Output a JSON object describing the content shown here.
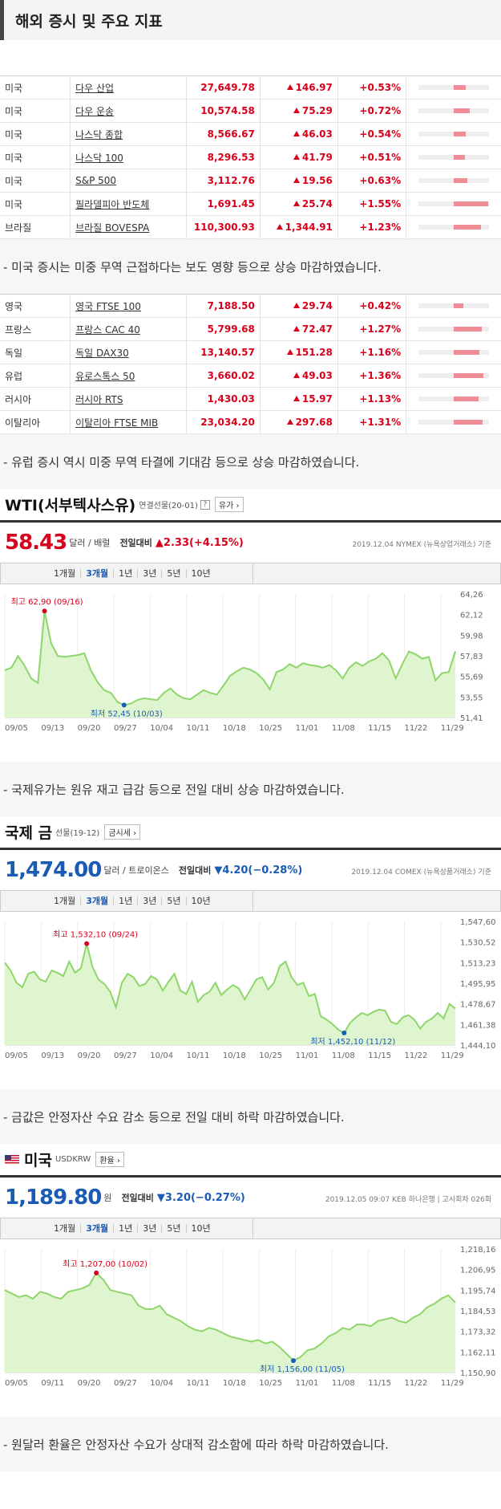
{
  "page_title": "해외 증시 및 주요 지표",
  "table1": [
    {
      "country": "미국",
      "name": "다우 산업",
      "value": "27,649.78",
      "change": "146.97",
      "pct": "+0.53%",
      "bar": 0.53
    },
    {
      "country": "미국",
      "name": "다우 운송",
      "value": "10,574.58",
      "change": "75.29",
      "pct": "+0.72%",
      "bar": 0.72
    },
    {
      "country": "미국",
      "name": "나스닥 종합",
      "value": "8,566.67",
      "change": "46.03",
      "pct": "+0.54%",
      "bar": 0.54
    },
    {
      "country": "미국",
      "name": "나스닥 100",
      "value": "8,296.53",
      "change": "41.79",
      "pct": "+0.51%",
      "bar": 0.51
    },
    {
      "country": "미국",
      "name": "S&P 500",
      "value": "3,112.76",
      "change": "19.56",
      "pct": "+0.63%",
      "bar": 0.63
    },
    {
      "country": "미국",
      "name": "필라델피아 반도체",
      "value": "1,691.45",
      "change": "25.74",
      "pct": "+1.55%",
      "bar": 1.55
    },
    {
      "country": "브라질",
      "name": "브라질 BOVESPA",
      "value": "110,300.93",
      "change": "1,344.91",
      "pct": "+1.23%",
      "bar": 1.23
    }
  ],
  "note1": "- 미국 증시는 미중 무역 근접하다는 보도 영향 등으로 상승 마감하였습니다.",
  "table2": [
    {
      "country": "영국",
      "name": "영국 FTSE 100",
      "value": "7,188.50",
      "change": "29.74",
      "pct": "+0.42%",
      "bar": 0.42
    },
    {
      "country": "프랑스",
      "name": "프랑스 CAC 40",
      "value": "5,799.68",
      "change": "72.47",
      "pct": "+1.27%",
      "bar": 1.27
    },
    {
      "country": "독일",
      "name": "독일 DAX30",
      "value": "13,140.57",
      "change": "151.28",
      "pct": "+1.16%",
      "bar": 1.16
    },
    {
      "country": "유럽",
      "name": "유로스톡스 50",
      "value": "3,660.02",
      "change": "49.03",
      "pct": "+1.36%",
      "bar": 1.36
    },
    {
      "country": "러시아",
      "name": "러시아 RTS",
      "value": "1,430.03",
      "change": "15.97",
      "pct": "+1.13%",
      "bar": 1.13
    },
    {
      "country": "이탈리아",
      "name": "이탈리아 FTSE MIB",
      "value": "23,034.20",
      "change": "297.68",
      "pct": "+1.31%",
      "bar": 1.31
    }
  ],
  "note2": "- 유럽 증시 역시 미중 무역 타결에 기대감 등으로 상승 마감하였습니다.",
  "wti": {
    "name": "WTI(서부텍사스유)",
    "sub": "연결선물(20-01)",
    "btn": "유가",
    "price": "58.43",
    "unit": "달러 / 배럴",
    "cmp_label": "전일대비",
    "cmp": "▲2.33(+4.15%)",
    "meta": "2019.12.04 NYMEX (뉴욕상업거래소) 기준",
    "periods": [
      "1개월",
      "3개월",
      "1년",
      "3년",
      "5년",
      "10년"
    ],
    "active_period": "3개월",
    "note": "- 국제유가는 원유 재고 급감 등으로 전일 대비 상승 마감하였습니다."
  },
  "gold": {
    "name": "국제 금",
    "sub": "선물(19-12)",
    "btn": "금시세",
    "price": "1,474.00",
    "unit": "달러 / 트로이온스",
    "cmp_label": "전일대비",
    "cmp": "▼4.20(−0.28%)",
    "meta": "2019.12.04 COMEX (뉴욕상품거래소) 기준",
    "periods": [
      "1개월",
      "3개월",
      "1년",
      "3년",
      "5년",
      "10년"
    ],
    "active_period": "3개월",
    "note": "- 금값은 안정자산 수요 감소 등으로 전일 대비 하락 마감하였습니다."
  },
  "usd": {
    "name": "미국",
    "sub": "USDKRW",
    "btn": "환율",
    "price": "1,189.80",
    "unit": "원",
    "cmp_label": "전일대비",
    "cmp": "▼3.20(−0.27%)",
    "meta": "2019.12.05 09:07 KEB 하나은행 | 고시회차 026회",
    "periods": [
      "1개월",
      "3개월",
      "1년",
      "3년",
      "5년",
      "10년"
    ],
    "active_period": "3개월",
    "note": "- 원달러 환율은 안정자산 수요가 상대적 감소함에 따라 하락 마감하였습니다."
  },
  "colors": {
    "up": "#d9001b",
    "down": "#1a5bb5",
    "chart_line": "#8ed66b",
    "chart_fill": "#dff5cf"
  },
  "chart_data": [
    {
      "type": "area",
      "title": "WTI",
      "x_ticks": [
        "09/05",
        "09/13",
        "09/20",
        "09/27",
        "10/04",
        "10/11",
        "10/18",
        "10/25",
        "11/01",
        "11/08",
        "11/15",
        "11/22",
        "11/29"
      ],
      "y_ticks": [
        "64,26",
        "62,12",
        "59,98",
        "57,83",
        "55,69",
        "53,55",
        "51,41"
      ],
      "ylim": [
        51.41,
        64.26
      ],
      "values": [
        56.3,
        56.6,
        57.9,
        56.8,
        55.4,
        54.9,
        62.9,
        59.3,
        57.9,
        57.8,
        57.9,
        58.0,
        58.2,
        56.3,
        55.0,
        54.1,
        53.8,
        52.8,
        52.45,
        52.6,
        53.0,
        53.2,
        53.1,
        53.0,
        53.8,
        54.3,
        53.6,
        53.2,
        53.1,
        53.6,
        54.1,
        53.8,
        53.6,
        54.6,
        55.7,
        56.2,
        56.6,
        56.4,
        56.0,
        55.3,
        54.2,
        56.1,
        56.4,
        57.0,
        56.6,
        57.1,
        56.9,
        56.8,
        56.6,
        56.9,
        56.3,
        55.4,
        56.6,
        57.2,
        56.8,
        57.3,
        57.6,
        58.2,
        57.4,
        55.4,
        57.0,
        58.4,
        58.1,
        57.6,
        57.8,
        55.2,
        56.0,
        56.1,
        58.43
      ],
      "annotations": [
        {
          "label": "최고 62,90 (09/16)",
          "x_index": 6,
          "value": 62.9
        },
        {
          "label": "최저 52,45 (10/03)",
          "x_index": 18,
          "value": 52.45
        }
      ]
    },
    {
      "type": "area",
      "title": "국제 금",
      "x_ticks": [
        "09/05",
        "09/13",
        "09/20",
        "09/27",
        "10/04",
        "10/11",
        "10/18",
        "10/25",
        "11/01",
        "11/08",
        "11/15",
        "11/22",
        "11/29"
      ],
      "y_ticks": [
        "1,547,60",
        "1,530,52",
        "1,513,23",
        "1,495,95",
        "1,478,67",
        "1,461,38",
        "1,444,10"
      ],
      "ylim": [
        1444.1,
        1547.6
      ],
      "values": [
        1515,
        1508,
        1497,
        1493,
        1505,
        1507,
        1500,
        1498,
        1508,
        1506,
        1503,
        1516,
        1506,
        1510,
        1532.1,
        1511,
        1500,
        1496,
        1489,
        1475,
        1497,
        1505,
        1502,
        1494,
        1496,
        1503,
        1500,
        1490,
        1498,
        1505,
        1490,
        1487,
        1498,
        1480,
        1486,
        1489,
        1497,
        1486,
        1491,
        1495,
        1492,
        1482,
        1491,
        1500,
        1502,
        1491,
        1497,
        1512,
        1516,
        1502,
        1495,
        1497,
        1485,
        1487,
        1467,
        1464,
        1460,
        1455,
        1452.1,
        1461,
        1466,
        1470,
        1468,
        1471,
        1473,
        1472,
        1462,
        1460,
        1466,
        1468,
        1464,
        1456,
        1462,
        1465,
        1470,
        1465,
        1478,
        1474
      ],
      "annotations": [
        {
          "label": "최고 1,532,10 (09/24)",
          "x_index": 14,
          "value": 1532.1
        },
        {
          "label": "최저 1,452,10 (11/12)",
          "x_index": 58,
          "value": 1452.1
        }
      ]
    },
    {
      "type": "area",
      "title": "미국 USDKRW",
      "x_ticks": [
        "09/05",
        "09/11",
        "09/20",
        "09/27",
        "10/04",
        "10/11",
        "10/18",
        "10/25",
        "11/01",
        "11/08",
        "11/15",
        "11/22",
        "11/29"
      ],
      "y_ticks": [
        "1,218,16",
        "1,206,95",
        "1,195,74",
        "1,184,53",
        "1,173,32",
        "1,162,11",
        "1,150,90"
      ],
      "ylim": [
        1150.9,
        1218.16
      ],
      "values": [
        1197,
        1195,
        1193,
        1194,
        1192,
        1196,
        1195,
        1193,
        1192,
        1196,
        1197,
        1198,
        1200,
        1207,
        1203,
        1197,
        1196,
        1195,
        1194,
        1188,
        1186,
        1186,
        1188,
        1183,
        1181,
        1179,
        1176,
        1174,
        1173,
        1175,
        1174,
        1172,
        1170,
        1169,
        1168,
        1167,
        1168,
        1166,
        1167,
        1164,
        1160,
        1156,
        1158,
        1162,
        1163,
        1166,
        1170,
        1172,
        1175,
        1174,
        1177,
        1177,
        1176,
        1179,
        1180,
        1181,
        1179,
        1178,
        1181,
        1183,
        1187,
        1189,
        1192,
        1194,
        1189.8
      ],
      "annotations": [
        {
          "label": "최고 1,207,00 (10/02)",
          "x_index": 13,
          "value": 1207
        },
        {
          "label": "최저 1,156,00 (11/05)",
          "x_index": 41,
          "value": 1156
        }
      ]
    }
  ]
}
